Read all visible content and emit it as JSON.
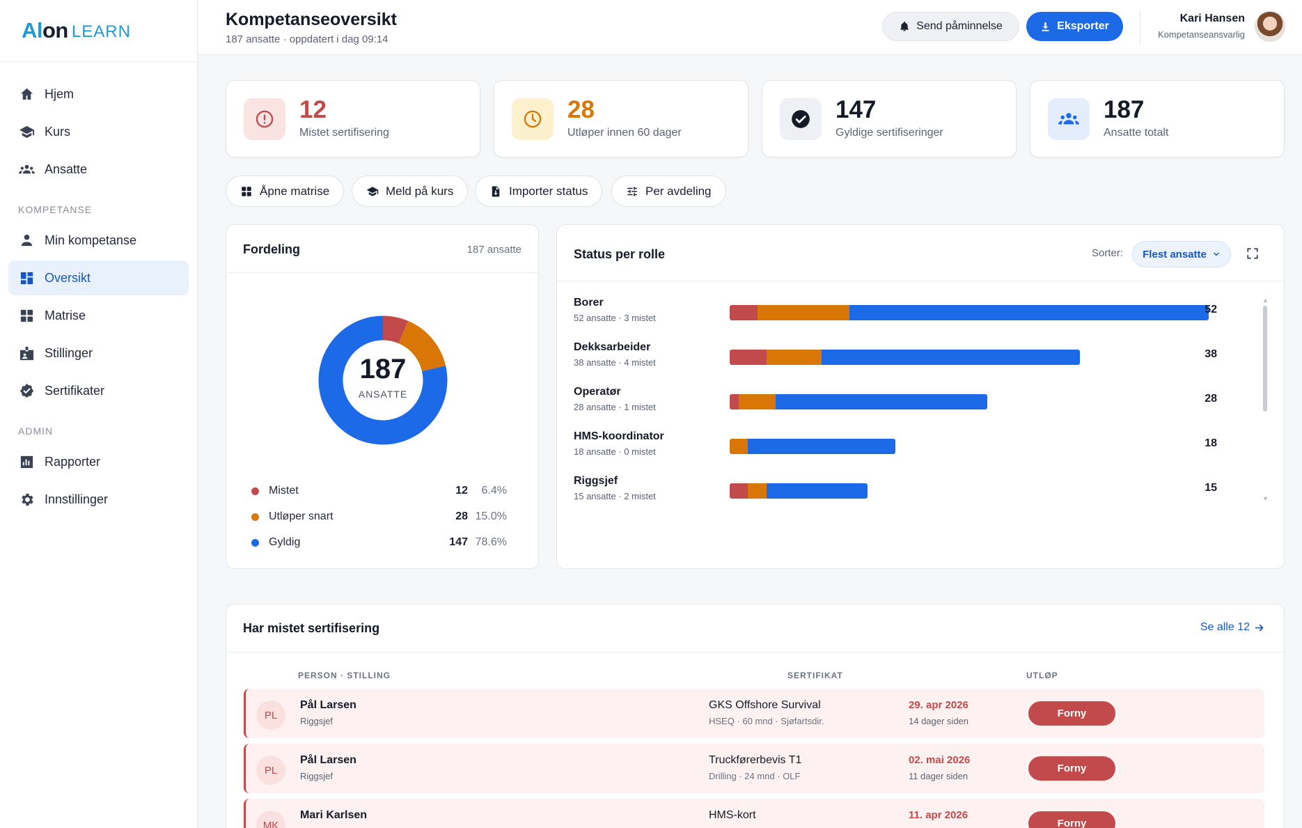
{
  "brand": {
    "name_a": "Al",
    "name_b": "on",
    "name_c": "LEARN"
  },
  "sidebar": {
    "main": [
      {
        "label": "Hjem",
        "icon": "home-icon"
      },
      {
        "label": "Kurs",
        "icon": "graduation-cap-icon"
      },
      {
        "label": "Ansatte",
        "icon": "users-icon"
      }
    ],
    "section_kompetanse": "KOMPETANSE",
    "kompetanse": [
      {
        "label": "Min kompetanse",
        "icon": "person-icon"
      },
      {
        "label": "Oversikt",
        "icon": "dashboard-icon",
        "active": true
      },
      {
        "label": "Matrise",
        "icon": "grid-icon"
      },
      {
        "label": "Stillinger",
        "icon": "badge-icon"
      },
      {
        "label": "Sertifikater",
        "icon": "verified-icon"
      }
    ],
    "section_admin": "ADMIN",
    "admin": [
      {
        "label": "Rapporter",
        "icon": "report-icon"
      },
      {
        "label": "Innstillinger",
        "icon": "gear-icon"
      }
    ]
  },
  "header": {
    "title": "Kompetanseoversikt",
    "subtitle": "187 ansatte · oppdatert i dag 09:14",
    "remind_label": "Send påminnelse",
    "export_label": "Eksporter",
    "user_name": "Kari Hansen",
    "user_role": "Kompetanseansvarlig"
  },
  "stats": [
    {
      "value": "12",
      "label": "Mistet sertifisering",
      "color": "#c24a4a",
      "icon": "alert-icon"
    },
    {
      "value": "28",
      "label": "Utløper innen 60 dager",
      "color": "#d97706",
      "icon": "clock-icon"
    },
    {
      "value": "147",
      "label": "Gyldige sertifiseringer",
      "color": "#151a28",
      "icon": "check-icon"
    },
    {
      "value": "187",
      "label": "Ansatte totalt",
      "color": "#151a28",
      "icon": "group-icon"
    }
  ],
  "quick_actions": [
    {
      "label": "Åpne matrise",
      "icon": "grid-icon"
    },
    {
      "label": "Meld på kurs",
      "icon": "graduation-cap-icon"
    },
    {
      "label": "Importer status",
      "icon": "file-import-icon"
    },
    {
      "label": "Per avdeling",
      "icon": "sliders-icon"
    }
  ],
  "distribution": {
    "title": "Fordeling",
    "count_label": "187 ansatte",
    "center_value": "187",
    "center_label": "ANSATTE",
    "items": [
      {
        "name": "Mistet",
        "count": "12",
        "pct": "6.4%",
        "value": 12,
        "color": "#c24a4a"
      },
      {
        "name": "Utløper snart",
        "count": "28",
        "pct": "15.0%",
        "value": 28,
        "color": "#d97706"
      },
      {
        "name": "Gyldig",
        "count": "147",
        "pct": "78.6%",
        "value": 147,
        "color": "#1d6ae8"
      }
    ]
  },
  "roles": {
    "title": "Status per rolle",
    "sort_label": "Sorter:",
    "sort_value": "Flest ansatte",
    "max": 52,
    "items": [
      {
        "name": "Borer",
        "sub": "52 ansatte · 3 mistet",
        "total": 52,
        "lost": 3,
        "expiring": 10,
        "valid": 39
      },
      {
        "name": "Dekksarbeider",
        "sub": "38 ansatte · 4 mistet",
        "total": 38,
        "lost": 4,
        "expiring": 6,
        "valid": 28
      },
      {
        "name": "Operatør",
        "sub": "28 ansatte · 1 mistet",
        "total": 28,
        "lost": 1,
        "expiring": 4,
        "valid": 23
      },
      {
        "name": "HMS-koordinator",
        "sub": "18 ansatte · 0 mistet",
        "total": 18,
        "lost": 0,
        "expiring": 2,
        "valid": 16
      },
      {
        "name": "Riggsjef",
        "sub": "15 ansatte · 2 mistet",
        "total": 15,
        "lost": 2,
        "expiring": 2,
        "valid": 11
      }
    ]
  },
  "lost": {
    "title": "Har mistet sertifisering",
    "see_all": "Se alle 12",
    "col_person": "PERSON · STILLING",
    "col_cert": "SERTIFIKAT",
    "col_expiry": "UTLØP",
    "renew_label": "Forny",
    "rows": [
      {
        "initials": "PL",
        "name": "Pål Larsen",
        "role": "Riggsjef",
        "cert": "GKS Offshore Survival",
        "cert_sub": "HSEQ · 60 mnd · Sjøfartsdir.",
        "date": "29. apr 2026",
        "ago": "14 dager siden"
      },
      {
        "initials": "PL",
        "name": "Pål Larsen",
        "role": "Riggsjef",
        "cert": "Truckførerbevis T1",
        "cert_sub": "Drilling · 24 mnd · OLF",
        "date": "02. mai 2026",
        "ago": "11 dager siden"
      },
      {
        "initials": "MK",
        "name": "Mari Karlsen",
        "role": "",
        "cert": "HMS-kort",
        "cert_sub": "",
        "date": "11. apr 2026",
        "ago": ""
      }
    ]
  }
}
